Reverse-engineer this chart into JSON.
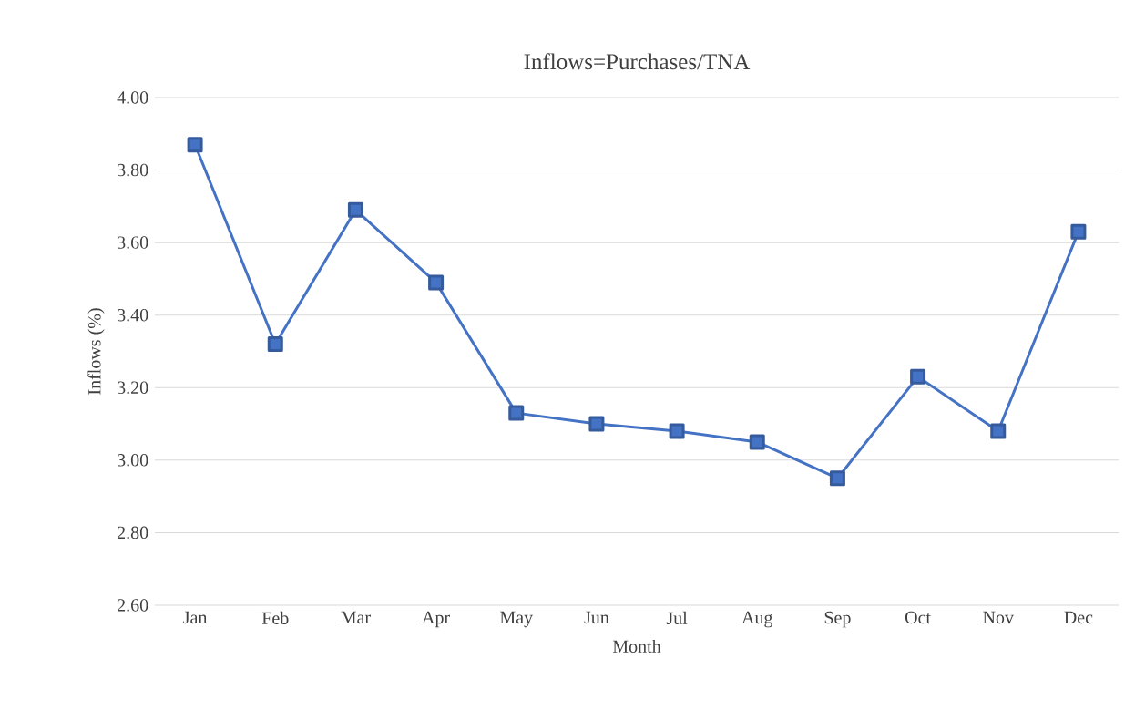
{
  "chart_data": {
    "type": "line",
    "title": "Inflows=Purchases/TNA",
    "xlabel": "Month",
    "ylabel": "Inflows (%)",
    "categories": [
      "Jan",
      "Feb",
      "Mar",
      "Apr",
      "May",
      "Jun",
      "Jul",
      "Aug",
      "Sep",
      "Oct",
      "Nov",
      "Dec"
    ],
    "series": [
      {
        "color": "#4472c4",
        "values": [
          3.87,
          3.32,
          3.69,
          3.49,
          3.13,
          3.1,
          3.08,
          3.05,
          2.95,
          3.23,
          3.08,
          3.63
        ]
      }
    ],
    "ylim": [
      2.6,
      4.0
    ],
    "yticks": [
      {
        "value": 2.6,
        "label": "2.60"
      },
      {
        "value": 2.8,
        "label": "2.80"
      },
      {
        "value": 3.0,
        "label": "3.00"
      },
      {
        "value": 3.2,
        "label": "3.20"
      },
      {
        "value": 3.4,
        "label": "3.40"
      },
      {
        "value": 3.6,
        "label": "3.60"
      },
      {
        "value": 3.8,
        "label": "3.80"
      },
      {
        "value": 4.0,
        "label": "4.00"
      }
    ],
    "grid": "y",
    "legend": false,
    "marker": "square",
    "line_style": "solid"
  }
}
